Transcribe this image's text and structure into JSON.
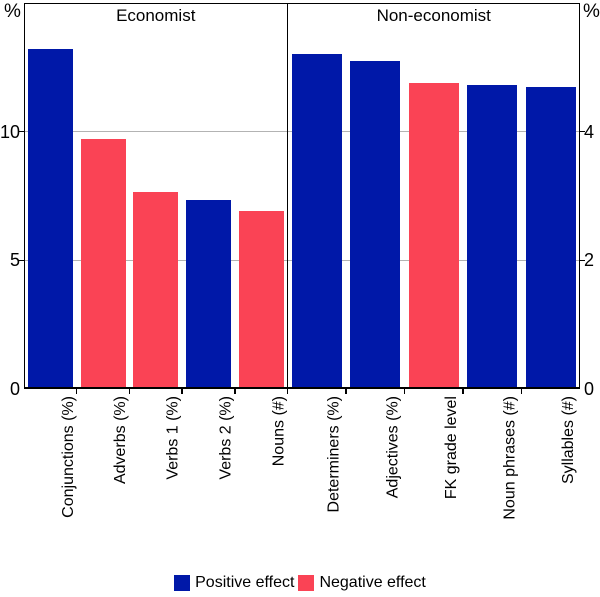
{
  "chart_data": {
    "type": "bar",
    "unit_labels": {
      "left": "%",
      "right": "%"
    },
    "panels": [
      {
        "title": "Economist",
        "axis_side": "left",
        "ylim": [
          0,
          15
        ],
        "yticks": [
          0,
          5,
          10
        ],
        "categories": [
          "Conjunctions (%)",
          "Adverbs (%)",
          "Verbs 1 (%)",
          "Verbs 2 (%)",
          "Nouns (#)"
        ],
        "values": [
          13.2,
          9.7,
          7.65,
          7.35,
          6.9
        ],
        "effects": [
          "positive",
          "negative",
          "negative",
          "positive",
          "negative"
        ]
      },
      {
        "title": "Non-economist",
        "axis_side": "right",
        "ylim": [
          0,
          6
        ],
        "yticks": [
          0,
          2,
          4
        ],
        "categories": [
          "Determiners (%)",
          "Adjectives (%)",
          "FK grade level",
          "Noun phrases (#)",
          "Syllables (#)"
        ],
        "values": [
          5.2,
          5.1,
          4.75,
          4.72,
          4.7
        ],
        "effects": [
          "positive",
          "positive",
          "negative",
          "positive",
          "positive"
        ]
      }
    ],
    "legend": [
      {
        "label": "Positive effect",
        "effect": "positive"
      },
      {
        "label": "Negative effect",
        "effect": "negative"
      }
    ],
    "colors": {
      "positive": "#0018A8",
      "negative": "#FA4355",
      "gridline": "#B3B3B3",
      "axis": "#000000"
    },
    "layout": {
      "grid": "on",
      "legend_position": "bottom"
    }
  }
}
